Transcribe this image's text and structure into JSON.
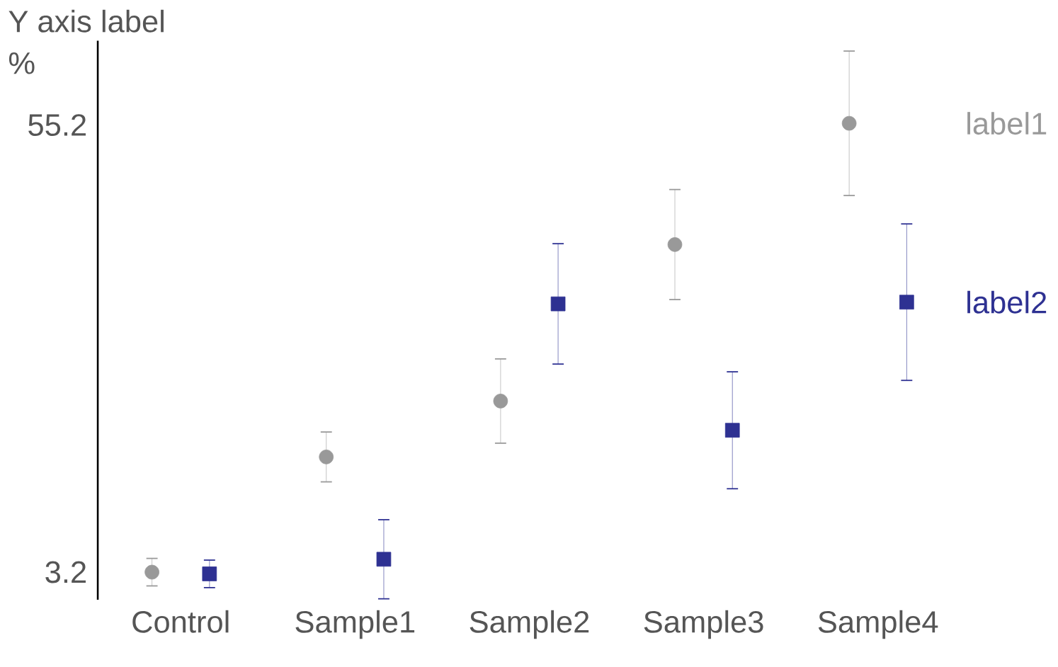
{
  "chart_data": {
    "type": "scatter",
    "ylabel": "Y axis label",
    "annotations": [
      "%"
    ],
    "categories": [
      "Control",
      "Sample1",
      "Sample2",
      "Sample3",
      "Sample4"
    ],
    "ylim": [
      0,
      65
    ],
    "yticks": [
      3.2,
      55.2
    ],
    "grid": false,
    "series": [
      {
        "name": "label1",
        "color": "#999999",
        "marker": "circle",
        "values": [
          3.2,
          16.6,
          23.1,
          41.3,
          55.4
        ],
        "errors": [
          1.6,
          2.9,
          4.9,
          6.4,
          8.4
        ]
      },
      {
        "name": "label2",
        "color": "#2e3192",
        "marker": "square",
        "values": [
          3.0,
          4.7,
          34.4,
          19.7,
          34.6
        ],
        "errors": [
          1.6,
          4.6,
          7.0,
          6.8,
          9.1
        ]
      }
    ]
  }
}
